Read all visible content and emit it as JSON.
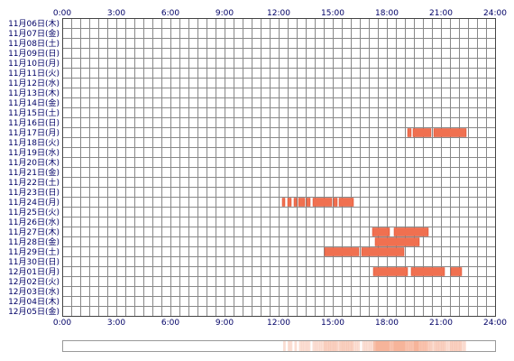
{
  "chart_data": {
    "type": "timeline",
    "x_unit": "hour",
    "xlim": [
      0,
      24
    ],
    "x_ticks": [
      "0:00",
      "3:00",
      "6:00",
      "9:00",
      "12:00",
      "15:00",
      "18:00",
      "21:00",
      "24:00"
    ],
    "grid": true,
    "rows": [
      {
        "label": "11月06日(木)",
        "segments": []
      },
      {
        "label": "11月07日(金)",
        "segments": []
      },
      {
        "label": "11月08日(土)",
        "segments": []
      },
      {
        "label": "11月09日(日)",
        "segments": []
      },
      {
        "label": "11月10日(月)",
        "segments": []
      },
      {
        "label": "11月11日(火)",
        "segments": []
      },
      {
        "label": "11月12日(水)",
        "segments": []
      },
      {
        "label": "11月13日(木)",
        "segments": []
      },
      {
        "label": "11月14日(金)",
        "segments": []
      },
      {
        "label": "11月15日(土)",
        "segments": []
      },
      {
        "label": "11月16日(日)",
        "segments": []
      },
      {
        "label": "11月17日(月)",
        "segments": [
          [
            19.15,
            19.35
          ],
          [
            19.45,
            20.45
          ],
          [
            20.6,
            22.4
          ]
        ]
      },
      {
        "label": "11月18日(火)",
        "segments": []
      },
      {
        "label": "11月19日(水)",
        "segments": []
      },
      {
        "label": "11月20日(木)",
        "segments": []
      },
      {
        "label": "11月21日(金)",
        "segments": []
      },
      {
        "label": "11月22日(土)",
        "segments": []
      },
      {
        "label": "11月23日(日)",
        "segments": []
      },
      {
        "label": "11月24日(月)",
        "segments": [
          [
            12.2,
            12.35
          ],
          [
            12.5,
            12.7
          ],
          [
            12.85,
            13.0
          ],
          [
            13.1,
            13.45
          ],
          [
            13.55,
            13.75
          ],
          [
            13.9,
            14.95
          ],
          [
            15.05,
            15.25
          ],
          [
            15.35,
            16.15
          ]
        ]
      },
      {
        "label": "11月25日(火)",
        "segments": []
      },
      {
        "label": "11月26日(水)",
        "segments": []
      },
      {
        "label": "11月27日(木)",
        "segments": [
          [
            17.2,
            18.15
          ],
          [
            18.4,
            20.3
          ]
        ]
      },
      {
        "label": "11月28日(金)",
        "segments": [
          [
            17.35,
            19.8
          ]
        ]
      },
      {
        "label": "11月29日(土)",
        "segments": [
          [
            14.55,
            16.45
          ],
          [
            16.6,
            18.95
          ]
        ]
      },
      {
        "label": "11月30日(日)",
        "segments": []
      },
      {
        "label": "12月01日(月)",
        "segments": [
          [
            17.25,
            19.15
          ],
          [
            19.35,
            21.2
          ],
          [
            21.55,
            22.15
          ]
        ]
      },
      {
        "label": "12月02日(火)",
        "segments": []
      },
      {
        "label": "12月03日(水)",
        "segments": []
      },
      {
        "label": "12月04日(木)",
        "segments": []
      },
      {
        "label": "12月05日(金)",
        "segments": []
      }
    ],
    "bar_color": "#f07050",
    "bar_stroke": "#d84a2a",
    "grid_color": "#888888",
    "frame_color": "#444444",
    "label_color": "#000066",
    "summary_strip_color": "#f6b49a"
  }
}
